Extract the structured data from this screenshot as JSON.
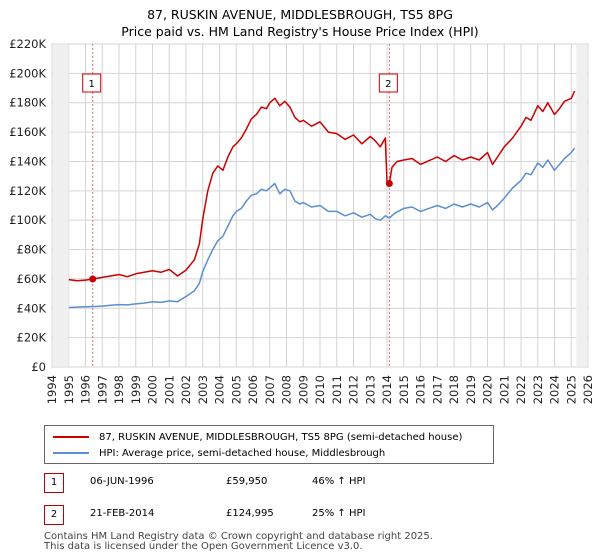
{
  "colors": {
    "red": "#cc0000",
    "blue": "#5b8fd0",
    "grid": "#d4d4d4",
    "vline": "#e07777"
  },
  "chart_data": {
    "type": "line",
    "title": "87, RUSKIN AVENUE, MIDDLESBROUGH, TS5 8PG",
    "subtitle": "Price paid vs. HM Land Registry's House Price Index (HPI)",
    "xlim": [
      1994,
      2026
    ],
    "ylim": [
      0,
      220000
    ],
    "x_ticks": [
      "1994",
      "1995",
      "1996",
      "1997",
      "1998",
      "1999",
      "2000",
      "2001",
      "2002",
      "2003",
      "2004",
      "2005",
      "2006",
      "2007",
      "2008",
      "2009",
      "2010",
      "2011",
      "2012",
      "2013",
      "2014",
      "2015",
      "2016",
      "2017",
      "2018",
      "2019",
      "2020",
      "2021",
      "2022",
      "2023",
      "2024",
      "2025",
      "2026"
    ],
    "y_ticks": [
      "£0",
      "£20K",
      "£40K",
      "£60K",
      "£80K",
      "£100K",
      "£120K",
      "£140K",
      "£160K",
      "£180K",
      "£200K",
      "£220K"
    ],
    "series": [
      {
        "name": "87, RUSKIN AVENUE, MIDDLESBROUGH, TS5 8PG (semi-detached house)",
        "x": [
          1995.0,
          1995.5,
          1996.0,
          1996.43,
          1997.0,
          1997.5,
          1998.0,
          1998.5,
          1999.0,
          1999.5,
          2000.0,
          2000.5,
          2001.0,
          2001.5,
          2002.0,
          2002.5,
          2002.8,
          2003.0,
          2003.3,
          2003.6,
          2003.9,
          2004.2,
          2004.5,
          2004.8,
          2005.0,
          2005.3,
          2005.6,
          2005.9,
          2006.2,
          2006.5,
          2006.8,
          2007.0,
          2007.3,
          2007.6,
          2007.9,
          2008.2,
          2008.5,
          2008.8,
          2009.0,
          2009.5,
          2010.0,
          2010.5,
          2011.0,
          2011.5,
          2012.0,
          2012.5,
          2013.0,
          2013.3,
          2013.6,
          2013.9,
          2014.0,
          2014.14,
          2014.3,
          2014.6,
          2015.0,
          2015.5,
          2016.0,
          2016.5,
          2017.0,
          2017.5,
          2018.0,
          2018.5,
          2019.0,
          2019.5,
          2020.0,
          2020.3,
          2020.6,
          2021.0,
          2021.5,
          2022.0,
          2022.3,
          2022.6,
          2023.0,
          2023.3,
          2023.6,
          2024.0,
          2024.3,
          2024.6,
          2025.0,
          2025.2
        ],
        "y": [
          59500,
          58800,
          59200,
          59950,
          61000,
          62000,
          63000,
          61500,
          63500,
          64500,
          65500,
          64500,
          66500,
          62000,
          66000,
          73000,
          84000,
          101000,
          120000,
          132000,
          137000,
          134000,
          143000,
          150000,
          152000,
          156000,
          162000,
          169000,
          172000,
          177000,
          176000,
          180000,
          183000,
          178000,
          181000,
          177000,
          170000,
          167000,
          168000,
          164000,
          167000,
          160000,
          159000,
          155000,
          158000,
          152000,
          157000,
          154000,
          150000,
          156000,
          126000,
          124995,
          136000,
          140000,
          141000,
          142000,
          138000,
          140500,
          143000,
          140000,
          144000,
          141000,
          143000,
          141000,
          146000,
          138000,
          143000,
          150000,
          156000,
          164000,
          170000,
          168000,
          178000,
          174000,
          180000,
          172000,
          176000,
          181000,
          183000,
          188000
        ]
      },
      {
        "name": "HPI: Average price, semi-detached house, Middlesbrough",
        "x": [
          1995.0,
          1995.5,
          1996.0,
          1996.5,
          1997.0,
          1997.5,
          1998.0,
          1998.5,
          1999.0,
          1999.5,
          2000.0,
          2000.5,
          2001.0,
          2001.5,
          2002.0,
          2002.5,
          2002.8,
          2003.0,
          2003.3,
          2003.6,
          2003.9,
          2004.2,
          2004.5,
          2004.8,
          2005.0,
          2005.3,
          2005.6,
          2005.9,
          2006.2,
          2006.5,
          2006.8,
          2007.0,
          2007.3,
          2007.6,
          2007.9,
          2008.2,
          2008.5,
          2008.8,
          2009.0,
          2009.5,
          2010.0,
          2010.5,
          2011.0,
          2011.5,
          2012.0,
          2012.5,
          2013.0,
          2013.3,
          2013.6,
          2013.9,
          2014.14,
          2014.5,
          2015.0,
          2015.5,
          2016.0,
          2016.5,
          2017.0,
          2017.5,
          2018.0,
          2018.5,
          2019.0,
          2019.5,
          2020.0,
          2020.3,
          2020.6,
          2021.0,
          2021.5,
          2022.0,
          2022.3,
          2022.6,
          2023.0,
          2023.3,
          2023.6,
          2024.0,
          2024.3,
          2024.6,
          2025.0,
          2025.2
        ],
        "y": [
          40500,
          40800,
          41000,
          41200,
          41500,
          42000,
          42500,
          42300,
          43000,
          43500,
          44500,
          44000,
          45000,
          44500,
          48000,
          52000,
          57000,
          65000,
          73000,
          80000,
          86000,
          89000,
          96000,
          103000,
          106000,
          108000,
          113000,
          117000,
          118000,
          121000,
          120000,
          122000,
          125000,
          118000,
          121000,
          120000,
          113000,
          111000,
          112000,
          109000,
          110000,
          106000,
          106000,
          103000,
          105000,
          102000,
          104000,
          101000,
          100000,
          103000,
          101500,
          105000,
          108000,
          109000,
          106000,
          108000,
          110000,
          108000,
          111000,
          109000,
          111000,
          109000,
          112000,
          107000,
          110000,
          115000,
          122000,
          127000,
          132000,
          131000,
          139000,
          136000,
          141000,
          134000,
          138000,
          142000,
          146000,
          149000
        ]
      }
    ],
    "sales": [
      {
        "label": "1",
        "x": 1996.43,
        "y": 59950
      },
      {
        "label": "2",
        "x": 2014.14,
        "y": 124995
      }
    ]
  },
  "legend": {
    "red_label": "87, RUSKIN AVENUE, MIDDLESBROUGH, TS5 8PG (semi-detached house)",
    "blue_label": "HPI: Average price, semi-detached house, Middlesbrough"
  },
  "sales_table": [
    {
      "num": "1",
      "date": "06-JUN-1996",
      "price": "£59,950",
      "hpi": "46% ↑ HPI"
    },
    {
      "num": "2",
      "date": "21-FEB-2014",
      "price": "£124,995",
      "hpi": "25% ↑ HPI"
    }
  ],
  "footer": {
    "line1": "Contains HM Land Registry data © Crown copyright and database right 2025.",
    "line2": "This data is licensed under the Open Government Licence v3.0."
  }
}
